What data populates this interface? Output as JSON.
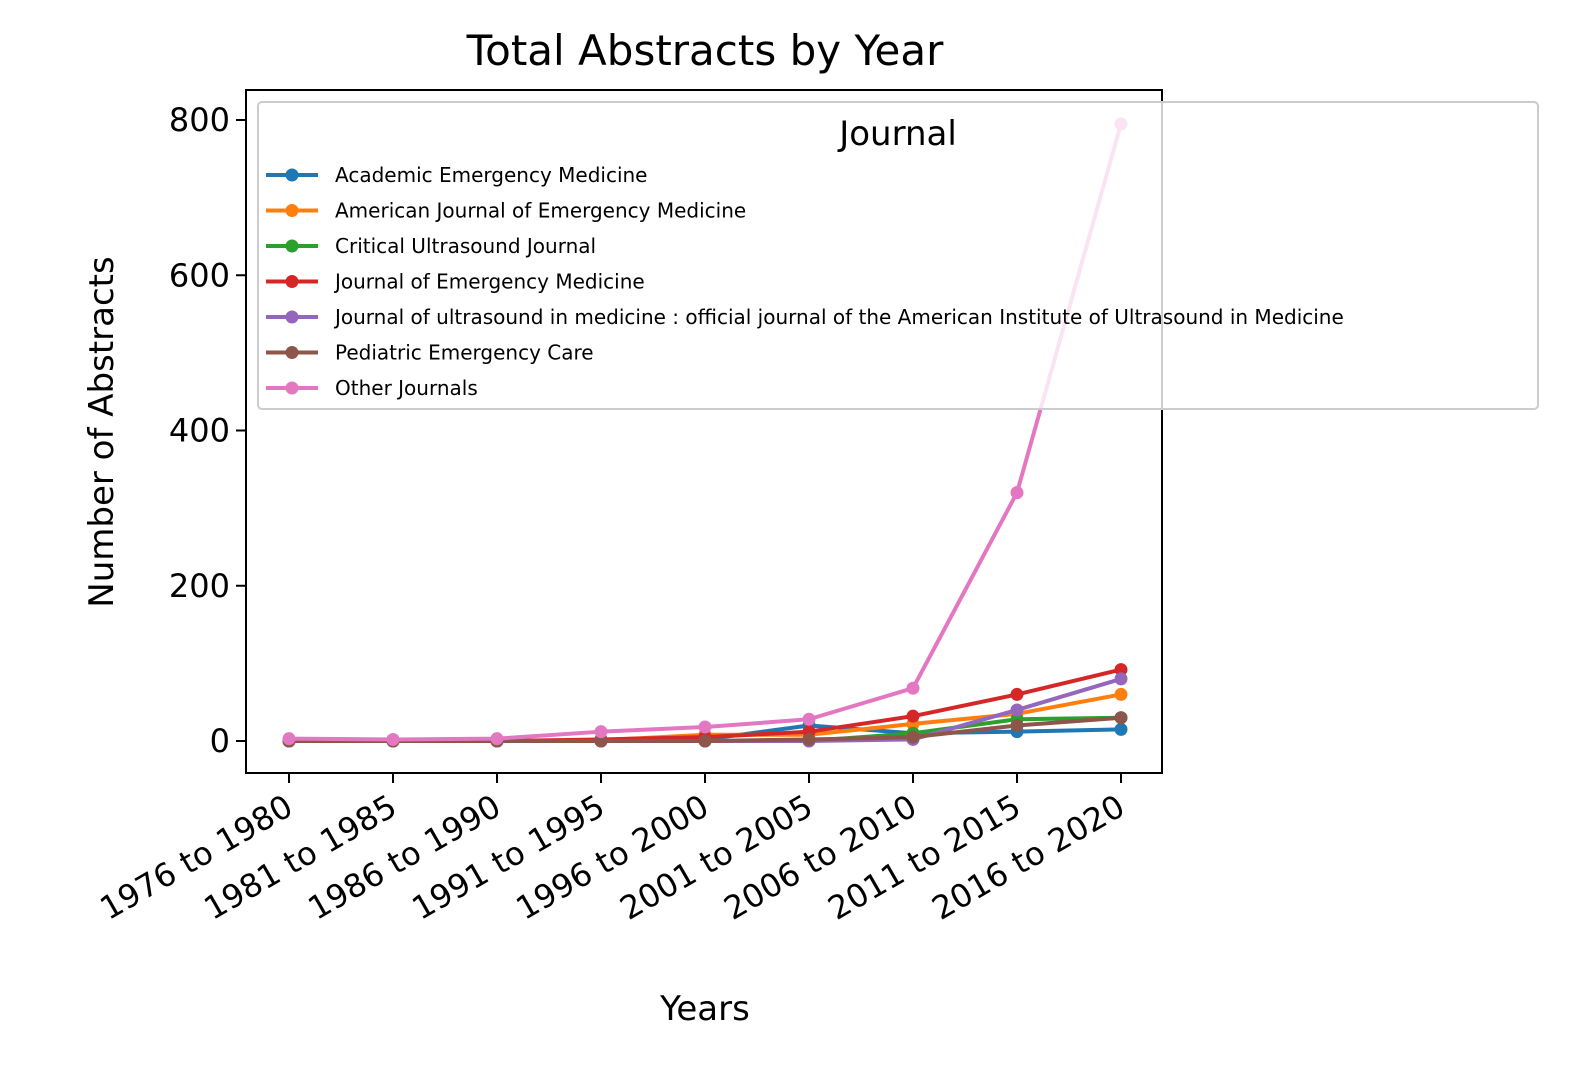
{
  "chart_data": {
    "type": "line",
    "title": "Total Abstracts by Year",
    "xlabel": "Years",
    "ylabel": "Number of Abstracts",
    "categories": [
      "1976 to 1980",
      "1981 to 1985",
      "1986 to 1990",
      "1991 to 1995",
      "1996 to 2000",
      "2001 to 2005",
      "2006 to 2010",
      "2011 to 2015",
      "2016 to 2020"
    ],
    "yticks": [
      0,
      200,
      400,
      600,
      800
    ],
    "ylim": [
      -40,
      835
    ],
    "grid": false,
    "legend": {
      "title": "Journal",
      "placement": "upper-right, extending outside the axes"
    },
    "series": [
      {
        "name": "Academic Emergency Medicine",
        "color": "#1f77b4",
        "values": [
          0,
          0,
          0,
          0,
          2,
          20,
          10,
          12,
          15
        ]
      },
      {
        "name": "American Journal of Emergency Medicine",
        "color": "#ff7f0e",
        "values": [
          0,
          0,
          0,
          1,
          8,
          8,
          22,
          35,
          60
        ]
      },
      {
        "name": "Critical Ultrasound Journal",
        "color": "#2ca02c",
        "values": [
          0,
          0,
          0,
          0,
          0,
          0,
          10,
          28,
          30
        ]
      },
      {
        "name": "Journal of Emergency Medicine",
        "color": "#d62728",
        "values": [
          0,
          0,
          0,
          2,
          5,
          12,
          32,
          60,
          92
        ]
      },
      {
        "name": "Journal of ultrasound in medicine : official journal of the American Institute of Ultrasound in Medicine",
        "color": "#9467bd",
        "values": [
          0,
          0,
          0,
          0,
          0,
          0,
          2,
          40,
          80
        ]
      },
      {
        "name": "Pediatric Emergency Care",
        "color": "#8c564b",
        "values": [
          0,
          0,
          0,
          0,
          0,
          2,
          5,
          20,
          30
        ]
      },
      {
        "name": "Other Journals",
        "color": "#e377c2",
        "values": [
          3,
          2,
          3,
          12,
          18,
          28,
          68,
          320,
          795
        ]
      }
    ]
  }
}
